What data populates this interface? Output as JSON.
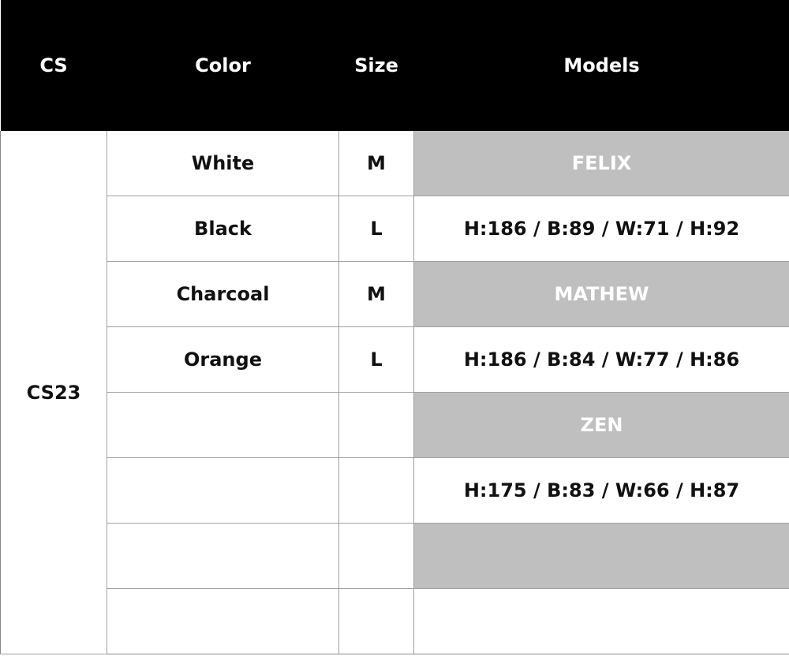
{
  "header": {
    "cs": "CS",
    "color": "Color",
    "size": "Size",
    "models": "Models"
  },
  "cs_value": "CS23",
  "rows": [
    {
      "color": "White",
      "size": "M",
      "models": "FELIX",
      "model_style": "name"
    },
    {
      "color": "Black",
      "size": "L",
      "models": "H:186 / B:89 / W:71 / H:92",
      "model_style": "measure"
    },
    {
      "color": "Charcoal",
      "size": "M",
      "models": "MATHEW",
      "model_style": "name"
    },
    {
      "color": "Orange",
      "size": "L",
      "models": "H:186 / B:84 / W:77 / H:86",
      "model_style": "measure"
    },
    {
      "color": "",
      "size": "",
      "models": "ZEN",
      "model_style": "name"
    },
    {
      "color": "",
      "size": "",
      "models": "H:175 / B:83 / W:66 / H:87",
      "model_style": "measure"
    },
    {
      "color": "",
      "size": "",
      "models": "",
      "model_style": "name"
    },
    {
      "color": "",
      "size": "",
      "models": "",
      "model_style": "measure"
    }
  ],
  "colors": {
    "header_bg": "#000000",
    "model_name_bg": "#bfbfbf",
    "model_name_text": "#ffffff"
  }
}
